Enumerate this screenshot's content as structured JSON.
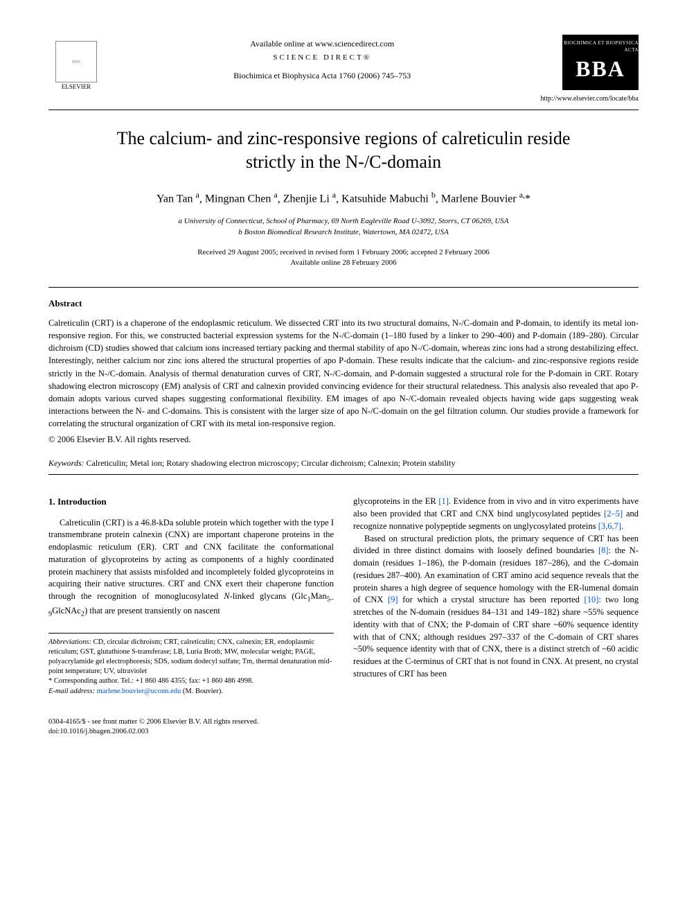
{
  "header": {
    "publisher": "ELSEVIER",
    "available_online": "Available online at www.sciencedirect.com",
    "science_direct": "SCIENCE DIRECT®",
    "journal_ref": "Biochimica et Biophysica Acta 1760 (2006) 745–753",
    "bba_top": "BIOCHIMICA ET BIOPHYSICA ACTA",
    "bba_main": "BBA",
    "bba_url": "http://www.elsevier.com/locate/bba"
  },
  "title": "The calcium- and zinc-responsive regions of calreticulin reside strictly in the N-/C-domain",
  "authors_html": "Yan Tan <sup>a</sup>, Mingnan Chen <sup>a</sup>, Zhenjie Li <sup>a</sup>, Katsuhide Mabuchi <sup>b</sup>, Marlene Bouvier <sup>a,</sup>*",
  "affiliations": {
    "a": "a University of Connecticut, School of Pharmacy, 69 North Eagleville Road U-3092, Storrs, CT 06269, USA",
    "b": "b Boston Biomedical Research Institute, Watertown, MA 02472, USA"
  },
  "dates": {
    "received": "Received 29 August 2005; received in revised form 1 February 2006; accepted 2 February 2006",
    "available": "Available online 28 February 2006"
  },
  "abstract": {
    "heading": "Abstract",
    "text": "Calreticulin (CRT) is a chaperone of the endoplasmic reticulum. We dissected CRT into its two structural domains, N-/C-domain and P-domain, to identify its metal ion-responsive region. For this, we constructed bacterial expression systems for the N-/C-domain (1–180 fused by a linker to 290–400) and P-domain (189–280). Circular dichroism (CD) studies showed that calcium ions increased tertiary packing and thermal stability of apo N-/C-domain, whereas zinc ions had a strong destabilizing effect. Interestingly, neither calcium nor zinc ions altered the structural properties of apo P-domain. These results indicate that the calcium- and zinc-responsive regions reside strictly in the N-/C-domain. Analysis of thermal denaturation curves of CRT, N-/C-domain, and P-domain suggested a structural role for the P-domain in CRT. Rotary shadowing electron microscopy (EM) analysis of CRT and calnexin provided convincing evidence for their structural relatedness. This analysis also revealed that apo P-domain adopts various curved shapes suggesting conformational flexibility. EM images of apo N-/C-domain revealed objects having wide gaps suggesting weak interactions between the N- and C-domains. This is consistent with the larger size of apo N-/C-domain on the gel filtration column. Our studies provide a framework for correlating the structural organization of CRT with its metal ion-responsive region.",
    "copyright": "© 2006 Elsevier B.V. All rights reserved."
  },
  "keywords": {
    "label": "Keywords:",
    "list": "Calreticulin; Metal ion; Rotary shadowing electron microscopy; Circular dichroism; Calnexin; Protein stability"
  },
  "intro": {
    "heading": "1. Introduction",
    "p1_a": "Calreticulin (CRT) is a 46.8-kDa soluble protein which together with the type I transmembrane protein calnexin (CNX) are important chaperone proteins in the endoplasmic reticulum (ER). CRT and CNX facilitate the conformational maturation of glycoproteins by acting as components of a highly coordinated protein machinery that assists misfolded and incompletely folded glycoproteins in acquiring their native structures. CRT and CNX exert their chaperone function through the recognition of monoglucosylated ",
    "p1_ital": "N",
    "p1_b": "-linked glycans (Glc",
    "p1_sub1": "1",
    "p1_c": "Man",
    "p1_sub2": "5–9",
    "p1_d": "GlcNAc",
    "p1_sub3": "2",
    "p1_e": ") that are present transiently on nascent",
    "p1_right_a": "glycoproteins in the ER ",
    "p1_right_ref1": "[1]",
    "p1_right_b": ". Evidence from in vivo and in vitro experiments have also been provided that CRT and CNX bind unglycosylated peptides ",
    "p1_right_ref2": "[2–5]",
    "p1_right_c": " and recognize nonnative polypeptide segments on unglycosylated proteins ",
    "p1_right_ref3": "[3,6,7]",
    "p1_right_d": ".",
    "p2_a": "Based on structural prediction plots, the primary sequence of CRT has been divided in three distinct domains with loosely defined boundaries ",
    "p2_ref1": "[8]",
    "p2_b": ": the N-domain (residues 1–186), the P-domain (residues 187–286), and the C-domain (residues 287–400). An examination of CRT amino acid sequence reveals that the protein shares a high degree of sequence homology with the ER-lumenal domain of CNX ",
    "p2_ref2": "[9]",
    "p2_c": " for which a crystal structure has been reported ",
    "p2_ref3": "[10]",
    "p2_d": ": two long stretches of the N-domain (residues 84–131 and 149–182) share ~55% sequence identity with that of CNX; the P-domain of CRT share ~60% sequence identity with that of CNX; although residues 297–337 of the C-domain of CRT shares ~50% sequence identity with that of CNX, there is a distinct stretch of ~60 acidic residues at the C-terminus of CRT that is not found in CNX. At present, no crystal structures of CRT has been"
  },
  "footnotes": {
    "abbrev_label": "Abbreviations:",
    "abbrev_text": " CD, circular dichroism; CRT, calreticulin; CNX, calnexin; ER, endoplasmic reticulum; GST, glutathione S-transferase; LB, Luria Broth; MW, molecular weight; PAGE, polyacrylamide gel electrophoresis; SDS, sodium dodecyl sulfate; Tm, thermal denaturation mid-point temperature; UV, ultraviolet",
    "corr_label": "* Corresponding author. ",
    "corr_text": "Tel.: +1 860 486 4355; fax: +1 860 486 4998.",
    "email_label": "E-mail address:",
    "email": "marlene.bouvier@uconn.edu",
    "email_who": "(M. Bouvier)."
  },
  "footer": {
    "line1": "0304-4165/$ - see front matter © 2006 Elsevier B.V. All rights reserved.",
    "line2": "doi:10.1016/j.bbagen.2006.02.003"
  },
  "colors": {
    "link": "#0055cc",
    "text": "#000000",
    "bg": "#ffffff"
  }
}
